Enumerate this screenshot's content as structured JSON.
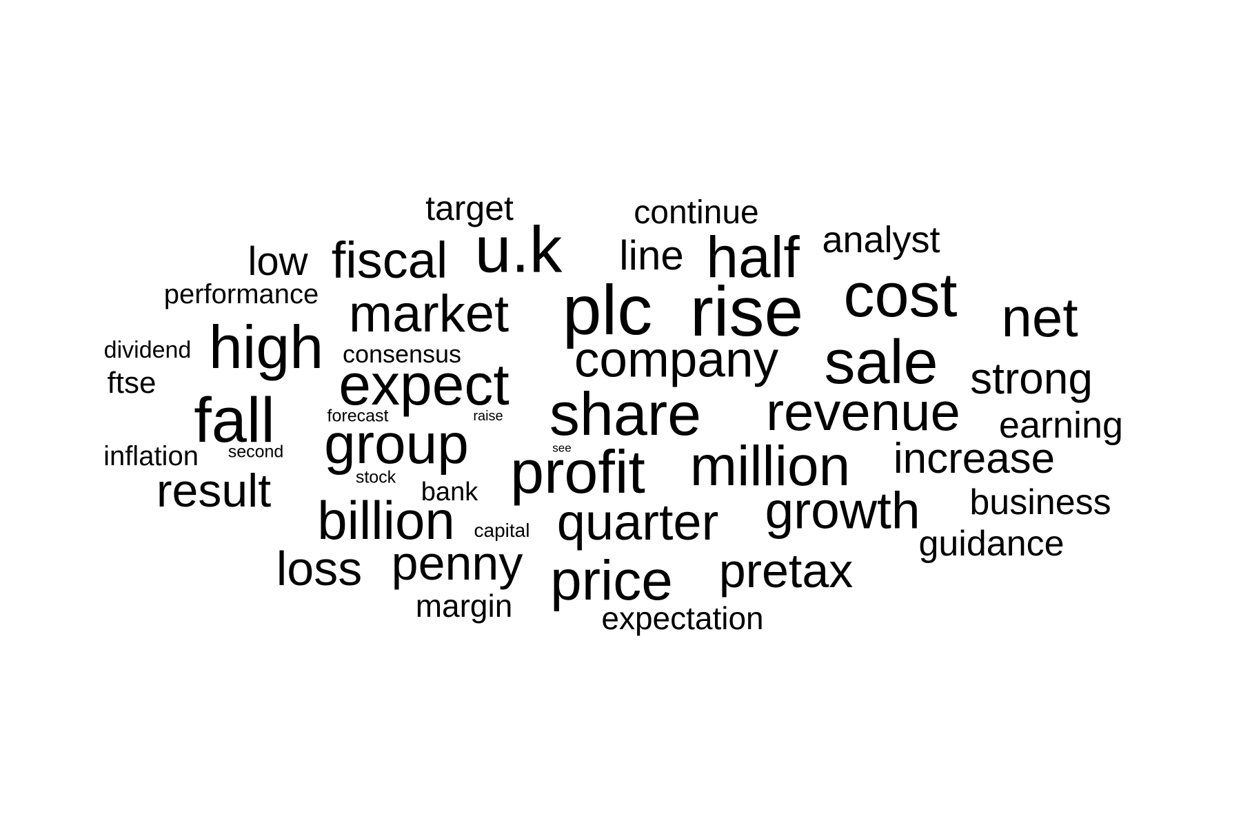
{
  "word_cloud": {
    "text_color": "#000000",
    "background_color": "#ffffff",
    "words": [
      "plc",
      "rise",
      "u.k",
      "cost",
      "sale",
      "share",
      "profit",
      "company",
      "half",
      "market",
      "high",
      "expect",
      "fall",
      "group",
      "revenue",
      "million",
      "net",
      "fiscal",
      "quarter",
      "price",
      "growth",
      "billion",
      "penny",
      "strong",
      "increase",
      "result",
      "pretax",
      "loss",
      "low",
      "line",
      "analyst",
      "earning",
      "business",
      "guidance",
      "target",
      "continue",
      "performance",
      "dividend",
      "consensus",
      "ftse",
      "inflation",
      "margin",
      "expectation",
      "bank",
      "capital",
      "forecast",
      "second",
      "stock",
      "raise",
      "see"
    ]
  }
}
